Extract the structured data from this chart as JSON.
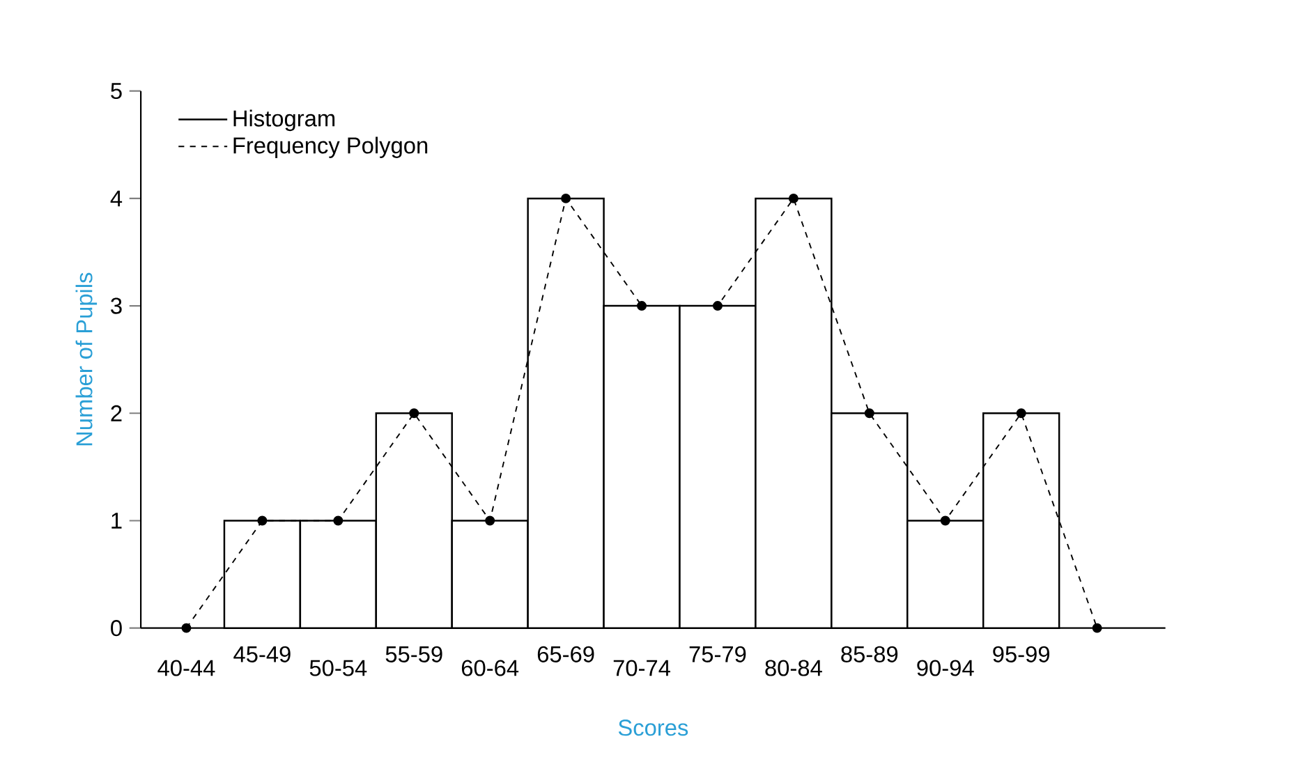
{
  "chart_data": {
    "type": "bar",
    "xlabel": "Scores",
    "ylabel": "Number of Pupils",
    "categories": [
      "40-44",
      "45-49",
      "50-54",
      "55-59",
      "60-64",
      "65-69",
      "70-74",
      "75-79",
      "80-84",
      "85-89",
      "90-94",
      "95-99",
      null
    ],
    "series": [
      {
        "name": "Histogram",
        "color": "#000000",
        "values": [
          null,
          1,
          1,
          2,
          1,
          4,
          3,
          3,
          4,
          2,
          1,
          2,
          null
        ]
      },
      {
        "name": "Frequency Polygon",
        "type": "line",
        "color": "#000000",
        "line_style": "dashed",
        "marker": "circle",
        "values": [
          0,
          1,
          1,
          2,
          1,
          4,
          3,
          3,
          4,
          2,
          1,
          2,
          0
        ]
      }
    ],
    "ylim": [
      0,
      5
    ],
    "yticks": [
      0,
      1,
      2,
      3,
      4,
      5
    ],
    "legend": "top left"
  }
}
